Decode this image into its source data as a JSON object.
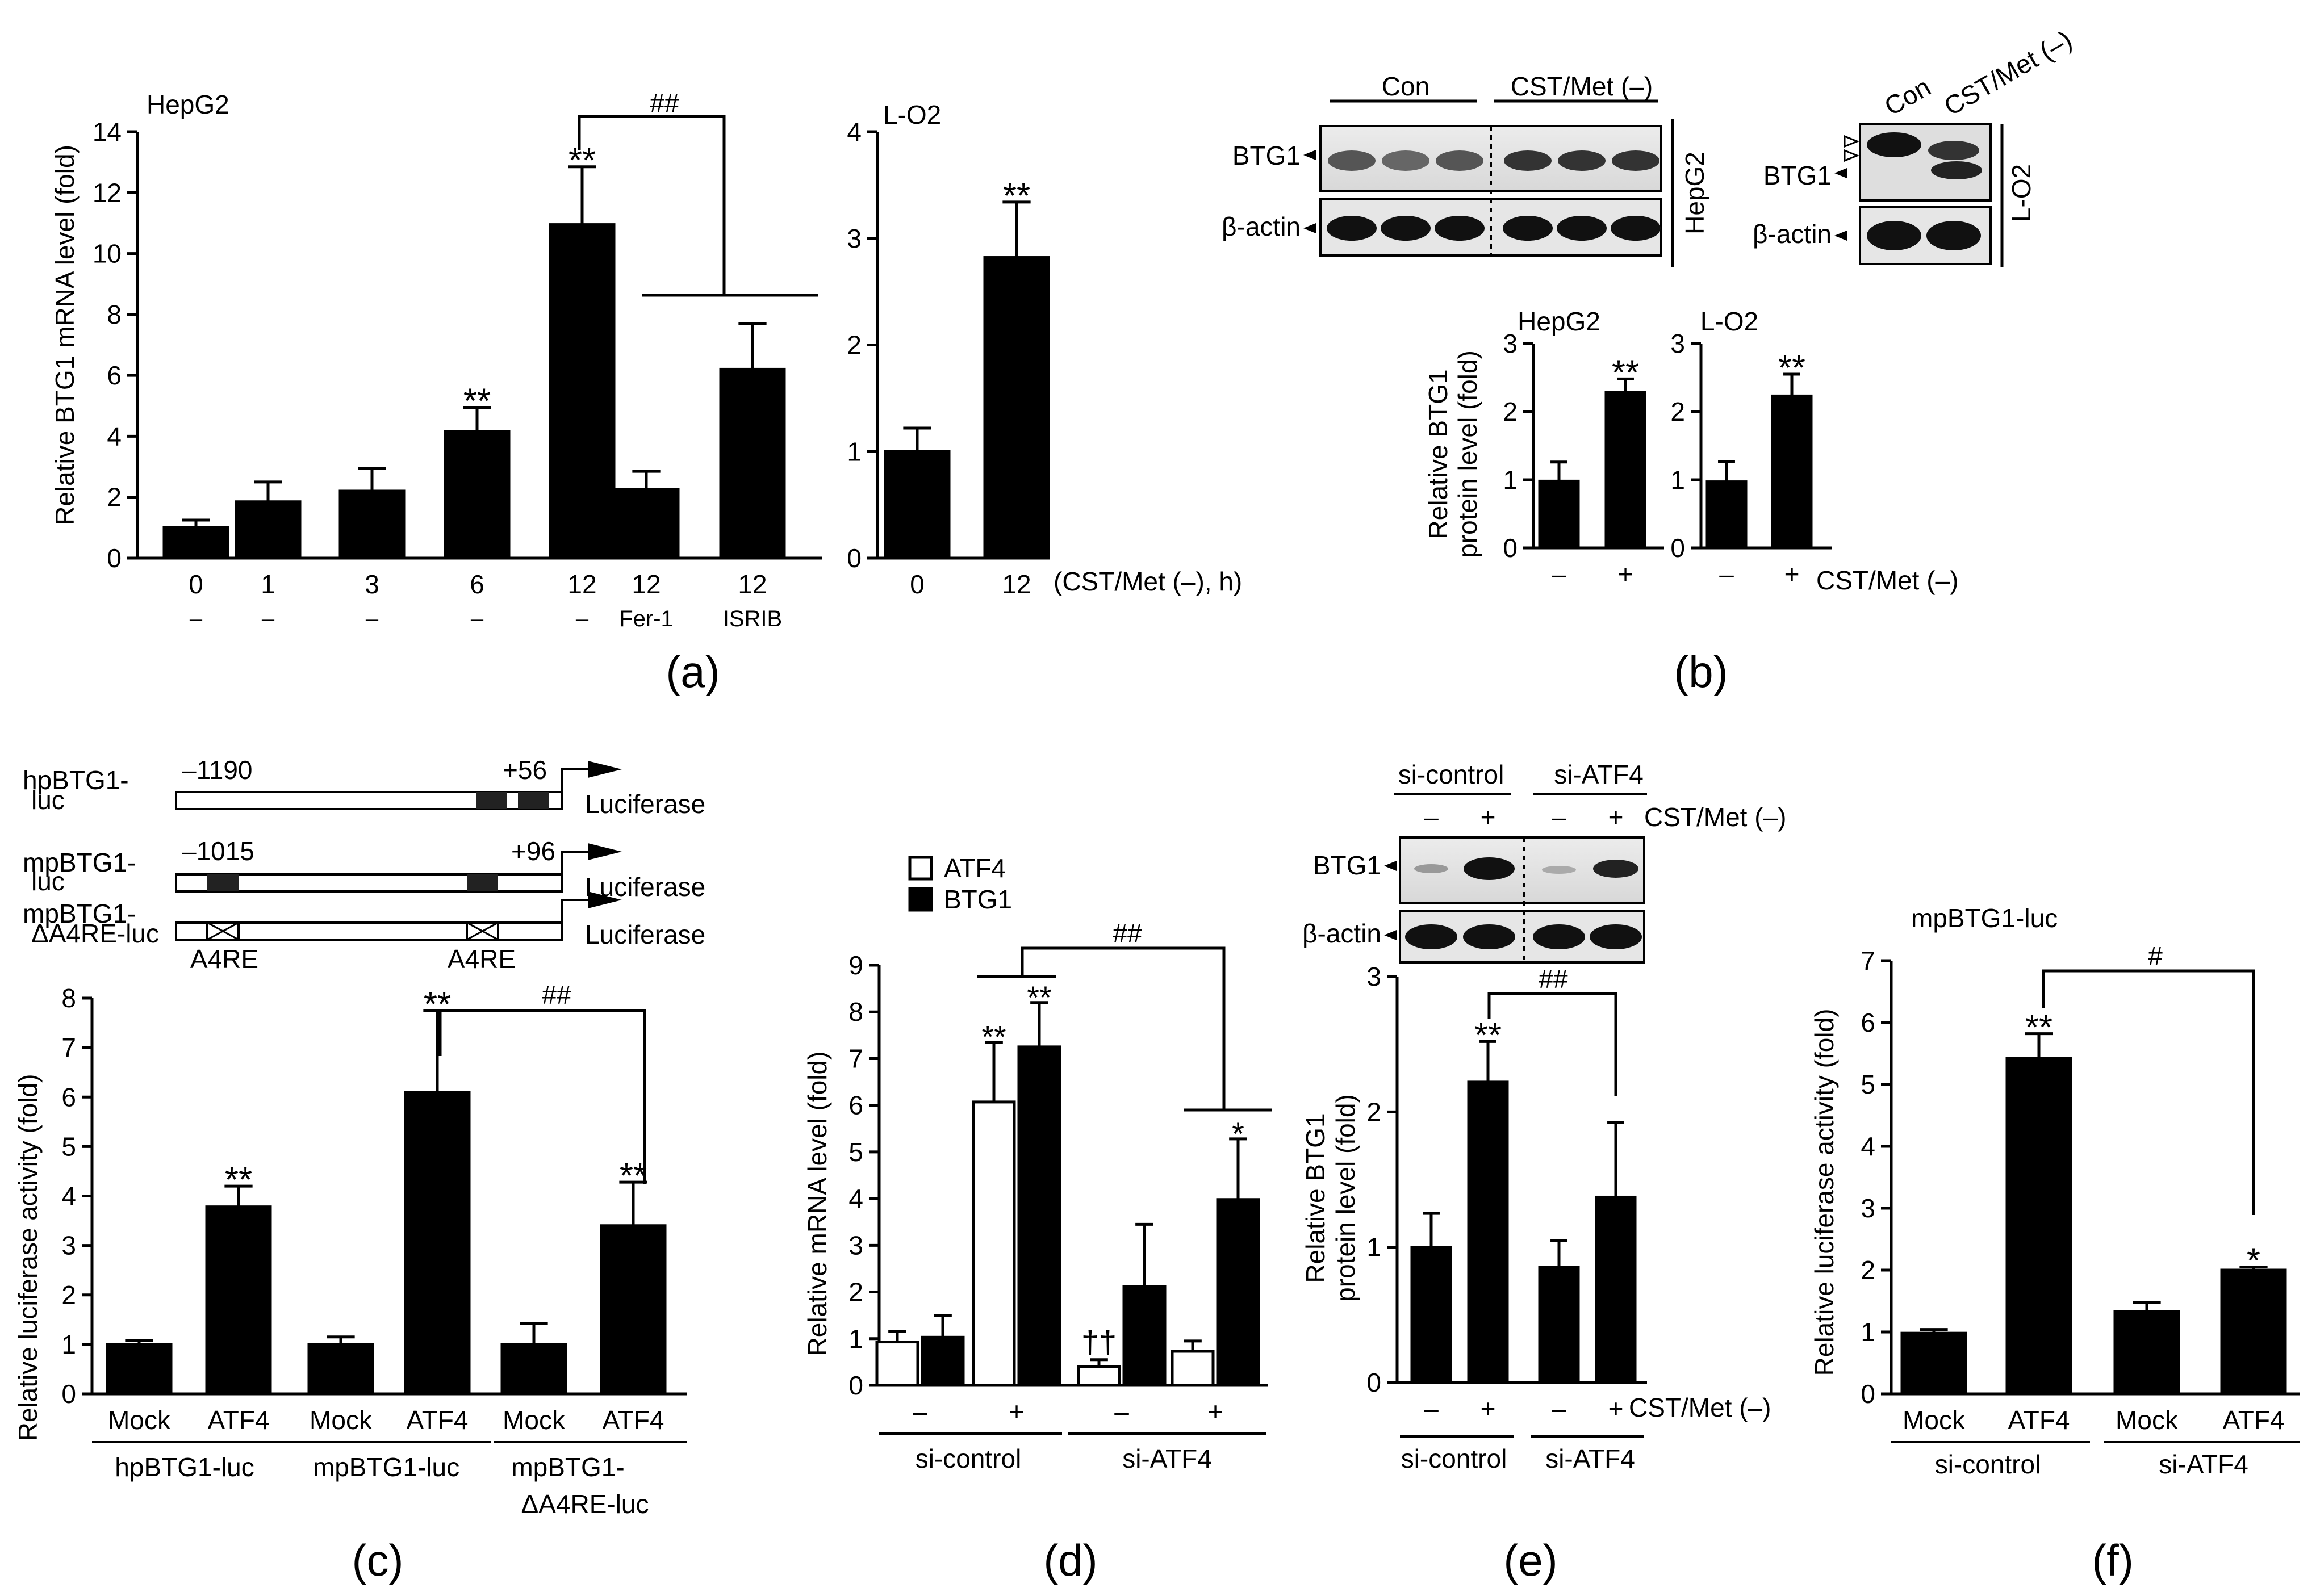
{
  "panel_labels": {
    "a": "(a)",
    "b": "(b)",
    "c": "(c)",
    "d": "(d)",
    "e": "(e)",
    "f": "(f)"
  },
  "chart_data": [
    {
      "id": "a1",
      "type": "bar",
      "title": "HepG2",
      "ylabel": "Relative BTG1 mRNA level (fold)",
      "ylim": [
        0,
        14
      ],
      "yticks": [
        0,
        2,
        4,
        6,
        8,
        10,
        12,
        14
      ],
      "categories": [
        "0",
        "1",
        "3",
        "6",
        "12",
        "12",
        "12"
      ],
      "sublabels": [
        "–",
        "–",
        "–",
        "–",
        "–",
        "Fer-1",
        "ISRIB"
      ],
      "values": [
        1.0,
        1.85,
        2.2,
        4.15,
        10.95,
        2.25,
        6.2
      ],
      "errors": [
        0.25,
        0.65,
        0.75,
        0.8,
        1.9,
        0.6,
        1.5
      ],
      "markers": [
        "",
        "",
        "",
        "**",
        "**",
        "",
        ""
      ],
      "comparison": "##"
    },
    {
      "id": "a2",
      "type": "bar",
      "title": "L-O2",
      "ylim": [
        0,
        4
      ],
      "yticks": [
        0,
        1,
        2,
        3,
        4
      ],
      "categories": [
        "0",
        "12"
      ],
      "xunit": "(CST/Met (–), h)",
      "values": [
        1.0,
        2.82
      ],
      "errors": [
        0.22,
        0.52
      ],
      "markers": [
        "",
        "**"
      ]
    },
    {
      "id": "b_blot",
      "type": "blot",
      "left": {
        "groups": [
          "Con",
          "CST/Met (–)"
        ],
        "rows": [
          "BTG1",
          "β-actin"
        ],
        "cell": "HepG2"
      },
      "right": {
        "groups": [
          "Con",
          "CST/Met (–)"
        ],
        "rows": [
          "BTG1",
          "β-actin"
        ],
        "cell": "L-O2"
      }
    },
    {
      "id": "b1",
      "type": "bar",
      "title": "HepG2",
      "ylabel_lines": [
        "Relative BTG1",
        "protein level (fold)"
      ],
      "ylim": [
        0,
        3
      ],
      "yticks": [
        0,
        1,
        2,
        3
      ],
      "categories": [
        "–",
        "+"
      ],
      "values": [
        0.98,
        2.28
      ],
      "errors": [
        0.28,
        0.2
      ],
      "markers": [
        "",
        "**"
      ]
    },
    {
      "id": "b2",
      "type": "bar",
      "title": "L-O2",
      "ylim": [
        0,
        3
      ],
      "yticks": [
        0,
        1,
        2,
        3
      ],
      "categories": [
        "–",
        "+"
      ],
      "xunit": "CST/Met (–)",
      "values": [
        0.97,
        2.23
      ],
      "errors": [
        0.3,
        0.32
      ],
      "markers": [
        "",
        "**"
      ]
    },
    {
      "id": "c_diagram",
      "type": "diagram",
      "constructs": [
        {
          "label": [
            "hpBTG1-",
            "luc"
          ],
          "start": "–1190",
          "end": "+56",
          "reporter": "Luciferase"
        },
        {
          "label": [
            "mpBTG1-",
            "luc"
          ],
          "start": "–1015",
          "end": "+96",
          "reporter": "Luciferase"
        },
        {
          "label": [
            "mpBTG1-",
            "ΔA4RE-luc"
          ],
          "site_labels": [
            "A4RE",
            "A4RE"
          ],
          "reporter": "Luciferase"
        }
      ]
    },
    {
      "id": "c",
      "type": "bar",
      "ylabel": "Relative luciferase activity (fold)",
      "ylim": [
        0,
        8
      ],
      "yticks": [
        0,
        1,
        2,
        3,
        4,
        5,
        6,
        7,
        8
      ],
      "categories": [
        "Mock",
        "ATF4",
        "Mock",
        "ATF4",
        "Mock",
        "ATF4"
      ],
      "values": [
        1.0,
        3.78,
        1.0,
        6.1,
        1.0,
        3.4
      ],
      "errors": [
        0.08,
        0.42,
        0.15,
        1.65,
        0.42,
        0.88
      ],
      "markers": [
        "",
        "**",
        "",
        "**",
        "",
        "**"
      ],
      "groups": [
        [
          "hpBTG1-luc"
        ],
        [
          "mpBTG1-luc"
        ],
        [
          "mpBTG1-",
          "ΔA4RE-luc"
        ]
      ],
      "comparison": "##"
    },
    {
      "id": "d",
      "type": "bar",
      "ylabel": "Relative mRNA level (fold)",
      "ylim": [
        0,
        9
      ],
      "yticks": [
        0,
        1,
        2,
        3,
        4,
        5,
        6,
        7,
        8,
        9
      ],
      "categories": [
        "–",
        "+",
        "–",
        "+"
      ],
      "series": [
        {
          "name": "ATF4",
          "fill": "#ffffff",
          "values": [
            0.93,
            6.07,
            0.4,
            0.73
          ],
          "errors": [
            0.22,
            1.28,
            0.15,
            0.22
          ],
          "markers": [
            "",
            "**",
            "††",
            ""
          ]
        },
        {
          "name": "BTG1",
          "fill": "#000000",
          "values": [
            1.03,
            7.25,
            2.12,
            3.98
          ],
          "errors": [
            0.47,
            0.95,
            1.33,
            1.3
          ],
          "markers": [
            "",
            "**",
            "",
            "*"
          ]
        }
      ],
      "groups": [
        "si-control",
        "si-ATF4"
      ],
      "comparison": "##"
    },
    {
      "id": "e_blot",
      "type": "blot",
      "groups": [
        "si-control",
        "si-ATF4"
      ],
      "lanes": [
        "–",
        "+",
        "–",
        "+"
      ],
      "treatment": "CST/Met (–)",
      "rows": [
        "BTG1",
        "β-actin"
      ]
    },
    {
      "id": "e",
      "type": "bar",
      "ylabel_lines": [
        "Relative BTG1",
        "protein level (fold)"
      ],
      "ylim": [
        0,
        3
      ],
      "yticks": [
        0,
        1,
        2,
        3
      ],
      "categories": [
        "–",
        "+",
        "–",
        "+"
      ],
      "xunit": "CST/Met (–)",
      "values": [
        1.0,
        2.22,
        0.85,
        1.37
      ],
      "errors": [
        0.25,
        0.3,
        0.2,
        0.55
      ],
      "markers": [
        "",
        "**",
        "",
        ""
      ],
      "groups": [
        "si-control",
        "si-ATF4"
      ],
      "comparison": "##"
    },
    {
      "id": "f",
      "type": "bar",
      "title": "mpBTG1-luc",
      "ylabel": "Relative luciferase activity (fold)",
      "ylim": [
        0,
        7
      ],
      "yticks": [
        0,
        1,
        2,
        3,
        4,
        5,
        6,
        7
      ],
      "categories": [
        "Mock",
        "ATF4",
        "Mock",
        "ATF4"
      ],
      "values": [
        0.98,
        5.42,
        1.33,
        2.0
      ],
      "errors": [
        0.06,
        0.4,
        0.15,
        0.05
      ],
      "markers": [
        "",
        "**",
        "",
        "*"
      ],
      "groups": [
        "si-control",
        "si-ATF4"
      ],
      "comparison": "#"
    }
  ]
}
